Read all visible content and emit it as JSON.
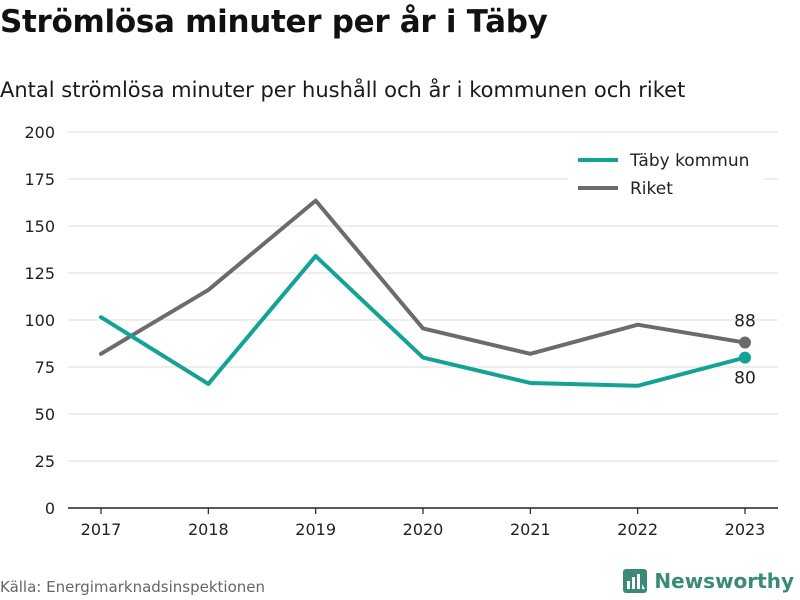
{
  "header": {
    "title": "Strömlösa minuter per år i Täby",
    "subtitle": "Antal strömlösa minuter per hushåll och år i kommunen och riket"
  },
  "footer": {
    "source": "Källa: Energimarknadsinspektionen",
    "brand": "Newsworthy",
    "brand_icon": "newsworthy-logo-icon"
  },
  "chart_data": {
    "type": "line",
    "title": "Strömlösa minuter per år i Täby",
    "subtitle": "Antal strömlösa minuter per hushåll och år i kommunen och riket",
    "x": [
      "2017",
      "2018",
      "2019",
      "2020",
      "2021",
      "2022",
      "2023"
    ],
    "ylim": [
      0,
      200
    ],
    "yticks": [
      0,
      25,
      50,
      75,
      100,
      125,
      150,
      175,
      200
    ],
    "grid": true,
    "legend_position": "top-right",
    "series": [
      {
        "name": "Täby kommun",
        "color": "#13a395",
        "values": [
          101.5,
          66,
          134,
          80,
          66.5,
          65,
          80
        ],
        "end_label": "80"
      },
      {
        "name": "Riket",
        "color": "#6b6b6b",
        "values": [
          82,
          116,
          163.5,
          95.5,
          82,
          97.5,
          88
        ],
        "end_label": "88"
      }
    ]
  }
}
